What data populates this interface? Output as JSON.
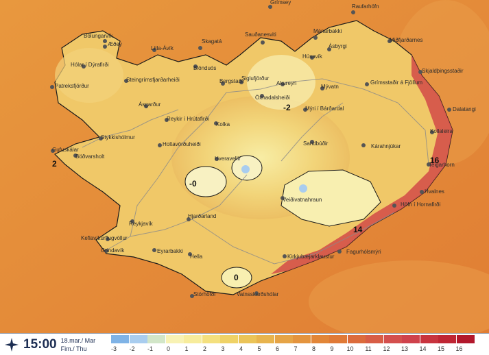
{
  "map": {
    "places": [
      {
        "name": "Grímsey"
      },
      {
        "name": "Raufarhöfn"
      },
      {
        "name": "Sauðanesviti"
      },
      {
        "name": "Mánárbakki"
      },
      {
        "name": "Bolungarvík"
      },
      {
        "name": "Æðey"
      },
      {
        "name": "Litla-Ávík"
      },
      {
        "name": "Skagatá"
      },
      {
        "name": "Ásbyrgi"
      },
      {
        "name": "Miðfjarðarnes"
      },
      {
        "name": "Hólar í Dýrafirði"
      },
      {
        "name": "Siglufjörður"
      },
      {
        "name": "Húsavík"
      },
      {
        "name": "Patreksfjörður"
      },
      {
        "name": "Steingrímsfjarðarheiði"
      },
      {
        "name": "Blönduós"
      },
      {
        "name": "Bergstaðir"
      },
      {
        "name": "Akureyri"
      },
      {
        "name": "Mývatn"
      },
      {
        "name": "Grímsstaðir á Fjöllum"
      },
      {
        "name": "Skjaldþingsstaðir"
      },
      {
        "name": "Öxnadalsheiði"
      },
      {
        "name": "Mýri í Bárðardal"
      },
      {
        "name": "Dalatangi"
      },
      {
        "name": "Ásgarður"
      },
      {
        "name": "Reykir í Hrútafirði"
      },
      {
        "name": "Kolka"
      },
      {
        "name": "Kollaleira"
      },
      {
        "name": "Stykkishólmur"
      },
      {
        "name": "Sandbúðir"
      },
      {
        "name": "Holtavörðuheiði"
      },
      {
        "name": "Kárahnjúkar"
      },
      {
        "name": "Gufuskálar"
      },
      {
        "name": "Böðvarsholt"
      },
      {
        "name": "Hveravellir"
      },
      {
        "name": "Teigarhorn"
      },
      {
        "name": "Hvalnes"
      },
      {
        "name": "Veiðivatnahraun"
      },
      {
        "name": "Höfn í Hornafirði"
      },
      {
        "name": "Reykjavík"
      },
      {
        "name": "Hjarðarland"
      },
      {
        "name": "Keflavíkurflugvöllur"
      },
      {
        "name": "Fagurhólsmýri"
      },
      {
        "name": "Grindavík"
      },
      {
        "name": "Eyrarbakki"
      },
      {
        "name": "Hella"
      },
      {
        "name": "Kirkjubæjarklaustur"
      },
      {
        "name": "Stórhöfði"
      },
      {
        "name": "Vatnsskarðshólar"
      }
    ],
    "temperatures": [
      {
        "value": "-2"
      },
      {
        "value": "2"
      },
      {
        "value": "-0"
      },
      {
        "value": "0"
      },
      {
        "value": "14"
      },
      {
        "value": "16"
      }
    ]
  },
  "legend": {
    "time": "15:00",
    "date_line1": "18.mar./ Mar",
    "date_line2": "Fim./ Thu",
    "scale": [
      {
        "label": "-3",
        "color": "#7fb3e6"
      },
      {
        "label": "-2",
        "color": "#a9cdef"
      },
      {
        "label": "-1",
        "color": "#d2e6c8"
      },
      {
        "label": "0",
        "color": "#f8f2b4"
      },
      {
        "label": "1",
        "color": "#f7ec9c"
      },
      {
        "label": "2",
        "color": "#f4e07e"
      },
      {
        "label": "3",
        "color": "#efd266"
      },
      {
        "label": "4",
        "color": "#ebc458"
      },
      {
        "label": "5",
        "color": "#e8b44e"
      },
      {
        "label": "6",
        "color": "#e6a446"
      },
      {
        "label": "7",
        "color": "#e4943e"
      },
      {
        "label": "8",
        "color": "#e28638"
      },
      {
        "label": "9",
        "color": "#e07a36"
      },
      {
        "label": "10",
        "color": "#dc6c3c"
      },
      {
        "label": "11",
        "color": "#d85e46"
      },
      {
        "label": "12",
        "color": "#d4504e"
      },
      {
        "label": "13",
        "color": "#cf424c"
      },
      {
        "label": "14",
        "color": "#c8343e"
      },
      {
        "label": "15",
        "color": "#bf2634"
      },
      {
        "label": "16",
        "color": "#b2182c"
      }
    ]
  }
}
